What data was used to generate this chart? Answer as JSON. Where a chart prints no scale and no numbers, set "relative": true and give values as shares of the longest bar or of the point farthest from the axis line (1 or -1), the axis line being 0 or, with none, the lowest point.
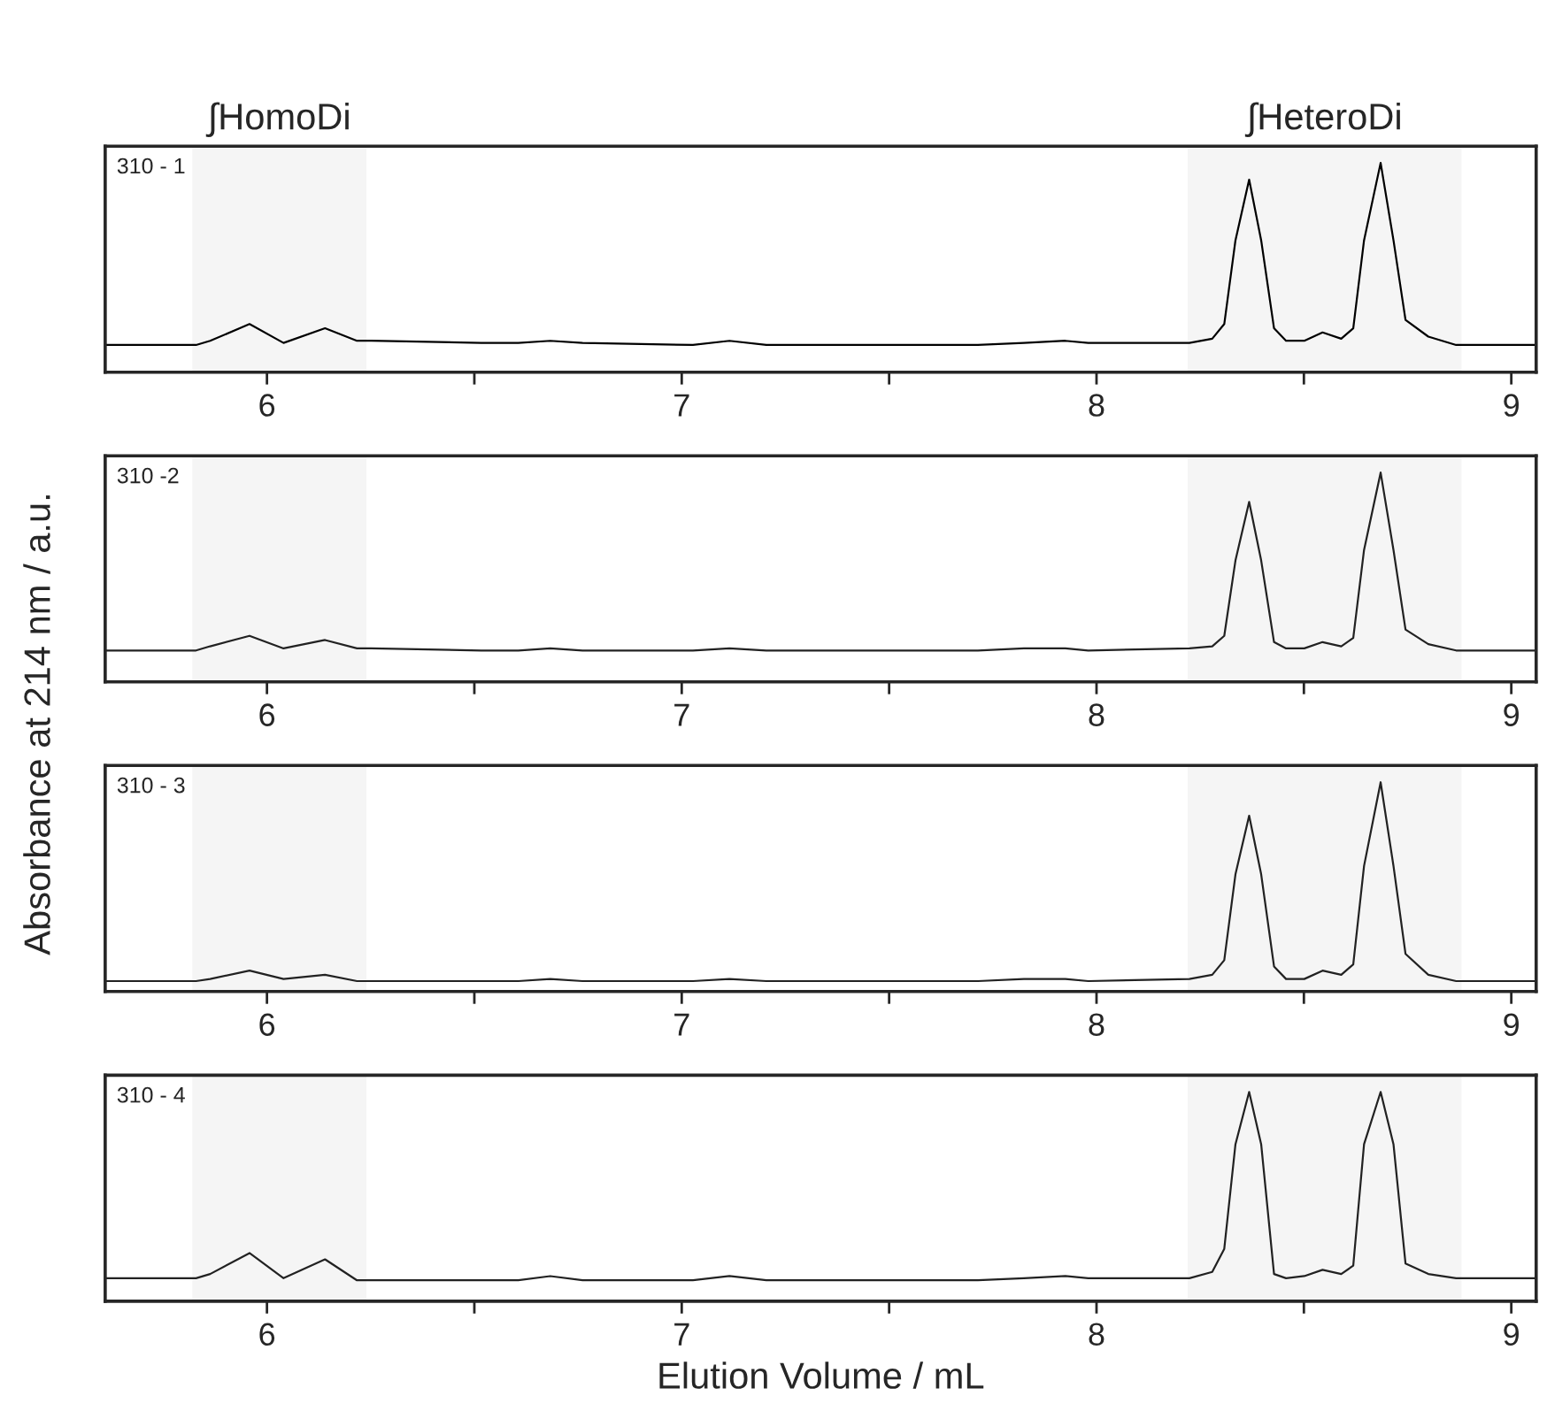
{
  "chart_data": [
    {
      "type": "line",
      "title": "310 - 1",
      "relative": true,
      "xlim": [
        5.61,
        9.06
      ],
      "xticks": [
        6,
        {
          "value": 6.5,
          "label": null
        },
        7,
        {
          "value": 7.5,
          "label": null
        },
        8,
        {
          "value": 8.5,
          "label": null
        },
        9
      ],
      "grid": false,
      "legend": false,
      "bands": [
        {
          "axis": "x",
          "from": 5.82,
          "to": 6.24,
          "label": "∫HomoDi",
          "color": "#f5f5f5"
        },
        {
          "axis": "x",
          "from": 8.22,
          "to": 8.88,
          "label": "∫HeteroDi",
          "color": "#f5f5f5"
        }
      ],
      "x": [
        5.61,
        5.829,
        5.863,
        5.958,
        6.04,
        6.14,
        6.217,
        6.251,
        6.517,
        6.606,
        6.683,
        6.761,
        7.027,
        7.115,
        7.204,
        7.47,
        7.581,
        7.714,
        7.825,
        7.925,
        7.98,
        8.224,
        8.279,
        8.308,
        8.335,
        8.368,
        8.397,
        8.428,
        8.457,
        8.501,
        8.545,
        8.59,
        8.619,
        8.645,
        8.685,
        8.716,
        8.745,
        8.8,
        8.867,
        9.06
      ],
      "series": [
        {
          "color": "#000000",
          "values": [
            0.13,
            0.13,
            0.15,
            0.23,
            0.14,
            0.21,
            0.15,
            0.15,
            0.14,
            0.14,
            0.15,
            0.14,
            0.13,
            0.15,
            0.13,
            0.13,
            0.13,
            0.13,
            0.14,
            0.15,
            0.14,
            0.14,
            0.16,
            0.23,
            0.63,
            0.92,
            0.63,
            0.21,
            0.15,
            0.15,
            0.19,
            0.16,
            0.21,
            0.63,
            1,
            0.63,
            0.25,
            0.17,
            0.13,
            0.13
          ]
        }
      ]
    },
    {
      "type": "line",
      "title": "310 -2",
      "relative": true,
      "xlim": [
        5.61,
        9.06
      ],
      "xticks": [
        6,
        {
          "value": 6.5,
          "label": null
        },
        7,
        {
          "value": 7.5,
          "label": null
        },
        8,
        {
          "value": 8.5,
          "label": null
        },
        9
      ],
      "grid": false,
      "legend": false,
      "bands": [
        {
          "axis": "x",
          "from": 5.82,
          "to": 6.24,
          "color": "#f5f5f5"
        },
        {
          "axis": "x",
          "from": 8.22,
          "to": 8.88,
          "color": "#f5f5f5"
        }
      ],
      "x": [
        5.61,
        5.829,
        5.863,
        5.958,
        6.04,
        6.14,
        6.217,
        6.251,
        6.517,
        6.606,
        6.683,
        6.761,
        7.027,
        7.115,
        7.204,
        7.47,
        7.581,
        7.714,
        7.825,
        7.925,
        7.98,
        8.224,
        8.279,
        8.308,
        8.335,
        8.368,
        8.397,
        8.428,
        8.457,
        8.501,
        8.545,
        8.59,
        8.619,
        8.645,
        8.685,
        8.716,
        8.745,
        8.8,
        8.867,
        9.06
      ],
      "series": [
        {
          "color": "#222222",
          "values": [
            0.15,
            0.15,
            0.17,
            0.22,
            0.16,
            0.2,
            0.16,
            0.16,
            0.15,
            0.15,
            0.16,
            0.15,
            0.15,
            0.16,
            0.15,
            0.15,
            0.15,
            0.15,
            0.16,
            0.16,
            0.15,
            0.16,
            0.17,
            0.22,
            0.58,
            0.86,
            0.58,
            0.19,
            0.16,
            0.16,
            0.19,
            0.17,
            0.21,
            0.63,
            1,
            0.63,
            0.25,
            0.18,
            0.15,
            0.15
          ]
        }
      ]
    },
    {
      "type": "line",
      "title": "310 - 3",
      "relative": true,
      "ylabel": "Absorbance at 214 nm / a.u.",
      "xlim": [
        5.61,
        9.06
      ],
      "xticks": [
        6,
        {
          "value": 6.5,
          "label": null
        },
        7,
        {
          "value": 7.5,
          "label": null
        },
        8,
        {
          "value": 8.5,
          "label": null
        },
        9
      ],
      "grid": false,
      "legend": false,
      "bands": [
        {
          "axis": "x",
          "from": 5.82,
          "to": 6.24,
          "color": "#f5f5f5"
        },
        {
          "axis": "x",
          "from": 8.22,
          "to": 8.88,
          "color": "#f5f5f5"
        }
      ],
      "x": [
        5.61,
        5.829,
        5.863,
        5.958,
        6.04,
        6.14,
        6.217,
        6.251,
        6.517,
        6.606,
        6.683,
        6.761,
        7.027,
        7.115,
        7.204,
        7.47,
        7.581,
        7.714,
        7.825,
        7.925,
        7.98,
        8.224,
        8.279,
        8.308,
        8.335,
        8.368,
        8.397,
        8.428,
        8.457,
        8.501,
        8.545,
        8.59,
        8.619,
        8.645,
        8.685,
        8.716,
        8.745,
        8.8,
        8.867,
        9.06
      ],
      "series": [
        {
          "color": "#222222",
          "values": [
            0.05,
            0.05,
            0.06,
            0.1,
            0.06,
            0.08,
            0.05,
            0.05,
            0.05,
            0.05,
            0.06,
            0.05,
            0.05,
            0.06,
            0.05,
            0.05,
            0.05,
            0.05,
            0.06,
            0.06,
            0.05,
            0.06,
            0.08,
            0.15,
            0.56,
            0.84,
            0.56,
            0.12,
            0.06,
            0.06,
            0.1,
            0.08,
            0.13,
            0.6,
            1,
            0.6,
            0.18,
            0.08,
            0.05,
            0.05
          ]
        }
      ]
    },
    {
      "type": "line",
      "title": "310 - 4",
      "relative": true,
      "xlabel": "Elution Volume / mL",
      "xlim": [
        5.61,
        9.06
      ],
      "xticks": [
        6,
        {
          "value": 6.5,
          "label": null
        },
        7,
        {
          "value": 7.5,
          "label": null
        },
        8,
        {
          "value": 8.5,
          "label": null
        },
        9
      ],
      "grid": false,
      "legend": false,
      "bands": [
        {
          "axis": "x",
          "from": 5.82,
          "to": 6.24,
          "color": "#f5f5f5"
        },
        {
          "axis": "x",
          "from": 8.22,
          "to": 8.88,
          "color": "#f5f5f5"
        }
      ],
      "x": [
        5.61,
        5.829,
        5.863,
        5.958,
        6.04,
        6.14,
        6.217,
        6.251,
        6.517,
        6.606,
        6.683,
        6.761,
        7.027,
        7.115,
        7.204,
        7.47,
        7.581,
        7.714,
        7.825,
        7.925,
        7.98,
        8.224,
        8.279,
        8.308,
        8.335,
        8.368,
        8.397,
        8.428,
        8.457,
        8.501,
        8.545,
        8.59,
        8.619,
        8.645,
        8.685,
        8.716,
        8.745,
        8.8,
        8.867,
        9.06
      ],
      "series": [
        {
          "color": "#222222",
          "values": [
            0.11,
            0.11,
            0.13,
            0.23,
            0.11,
            0.2,
            0.1,
            0.1,
            0.1,
            0.1,
            0.12,
            0.1,
            0.1,
            0.12,
            0.1,
            0.1,
            0.1,
            0.1,
            0.11,
            0.12,
            0.11,
            0.11,
            0.14,
            0.25,
            0.75,
            1,
            0.75,
            0.13,
            0.11,
            0.12,
            0.15,
            0.13,
            0.17,
            0.75,
            1,
            0.75,
            0.18,
            0.13,
            0.11,
            0.11
          ]
        }
      ]
    }
  ]
}
